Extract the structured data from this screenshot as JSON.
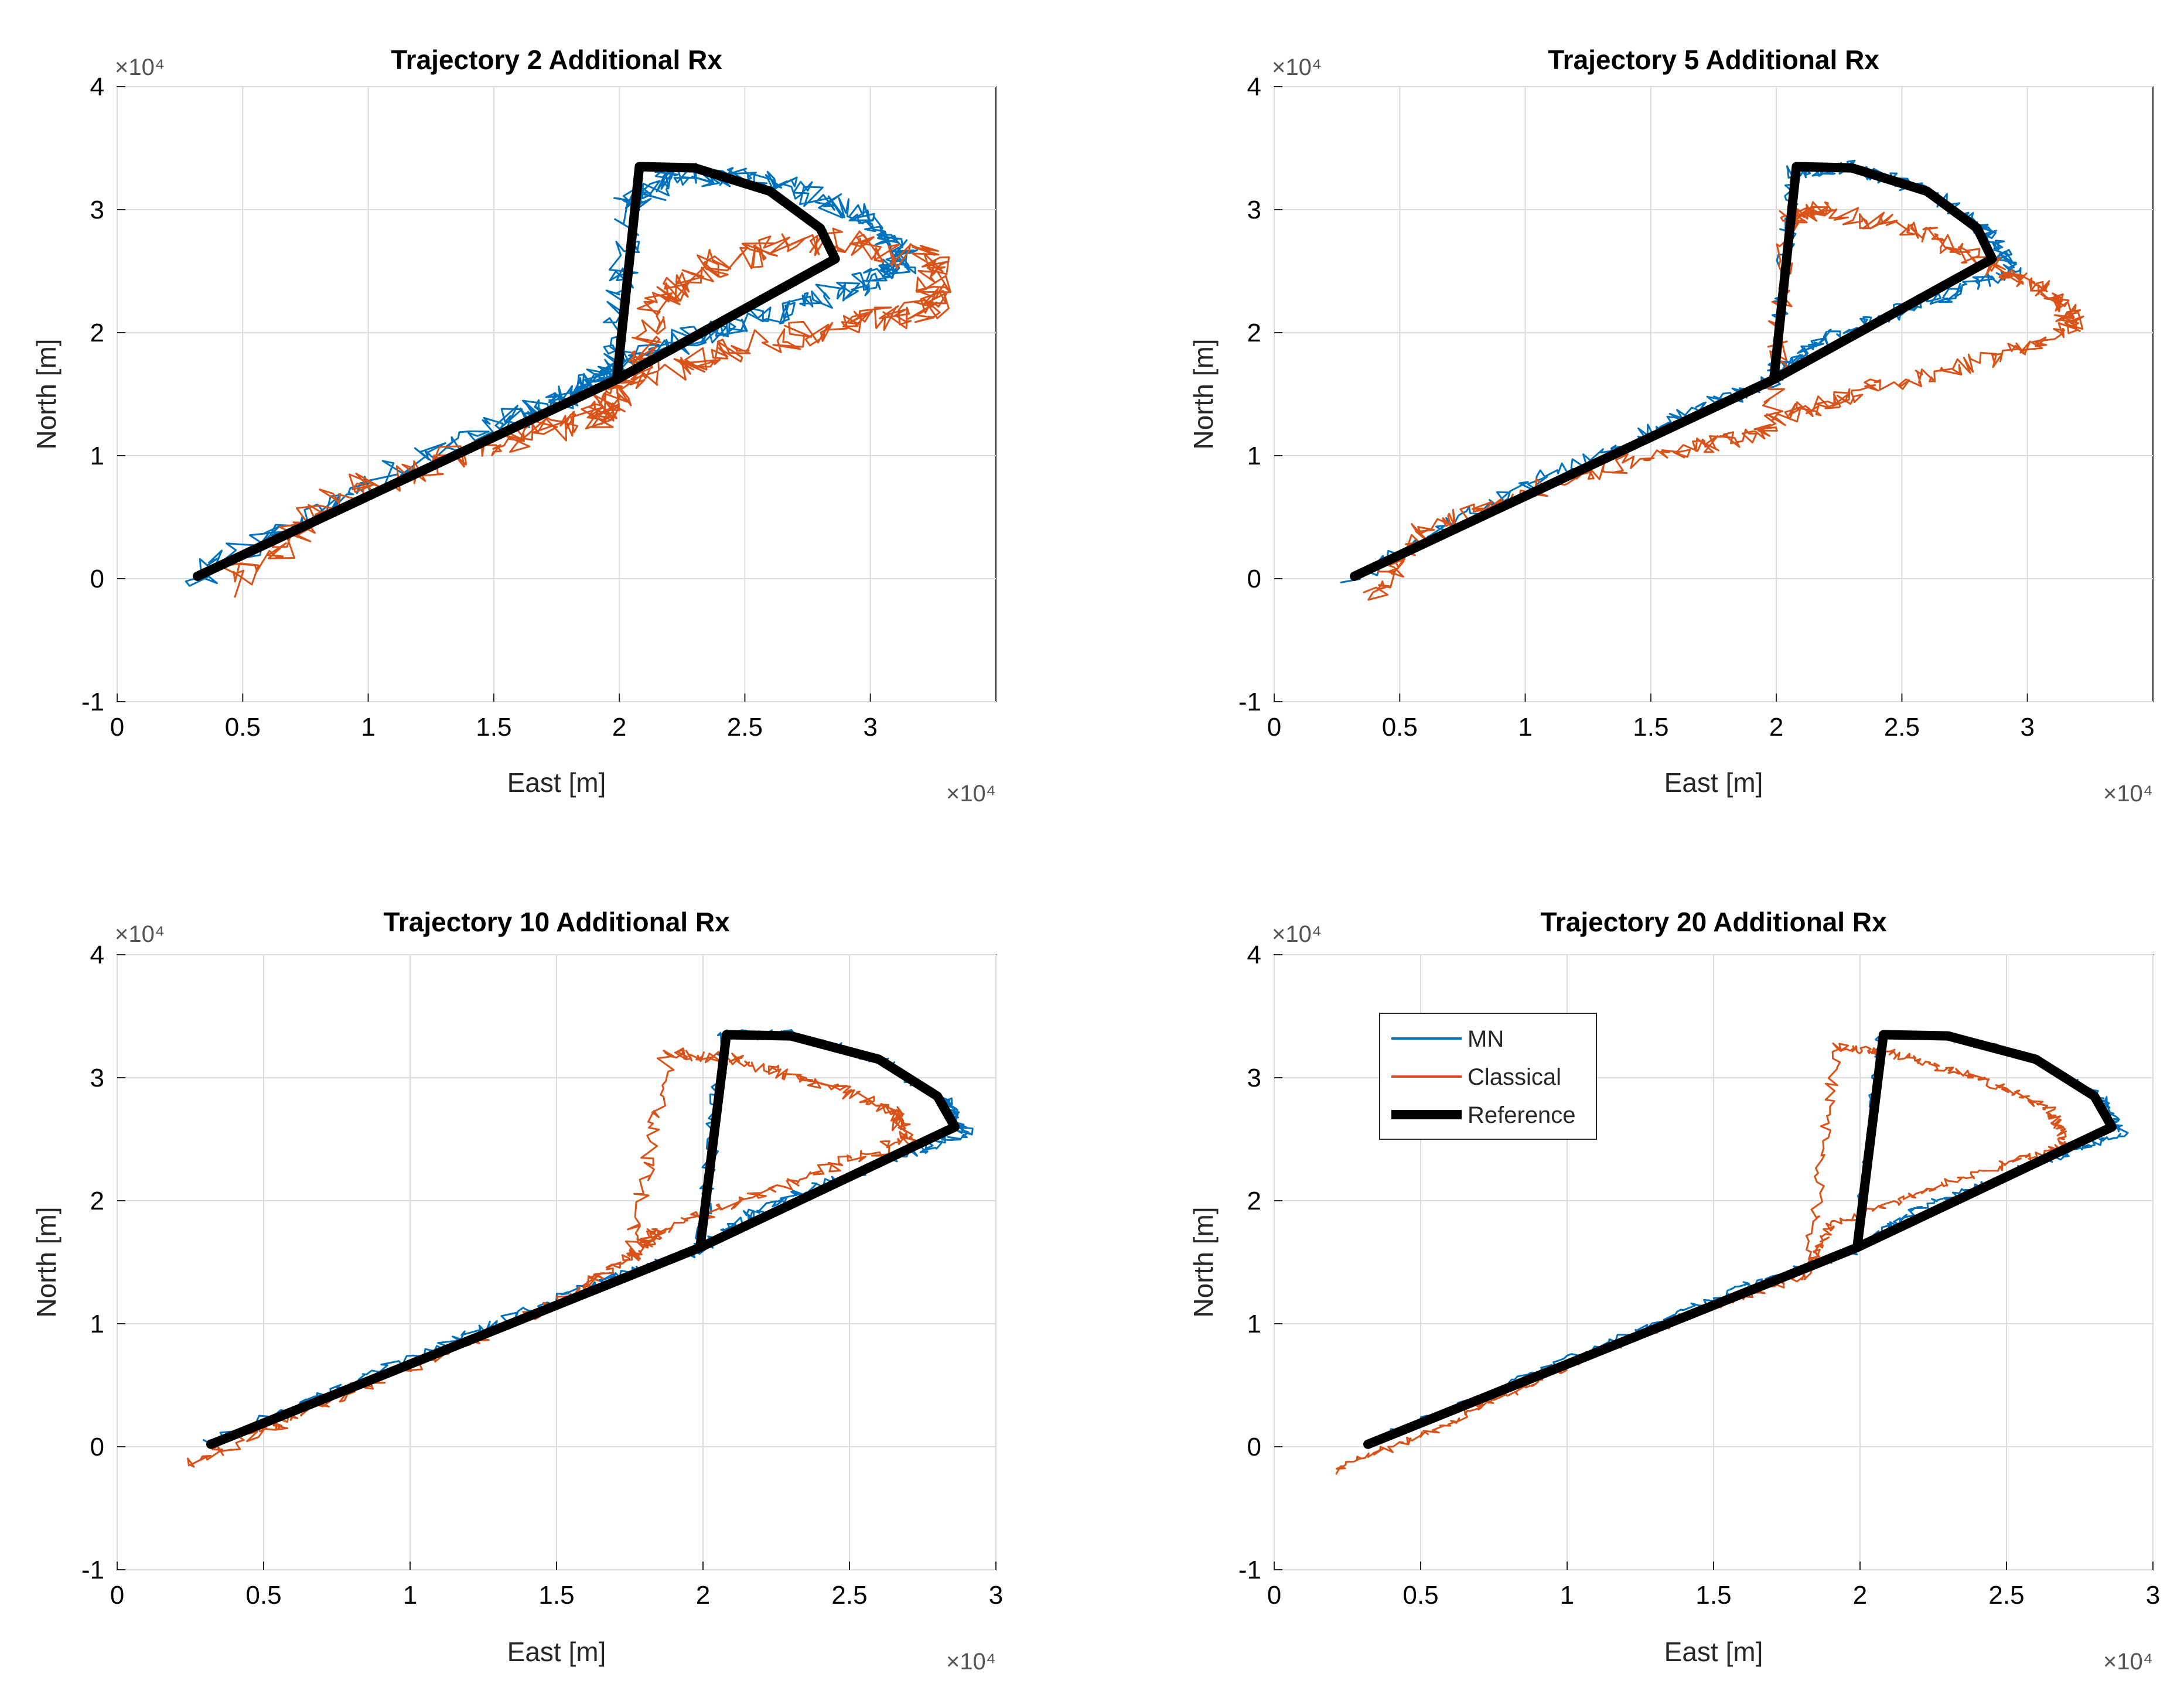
{
  "chart_data": [
    {
      "type": "line",
      "title": "Trajectory 2 Additional Rx",
      "xlabel": "East [m]",
      "ylabel": "North [m]",
      "x_exponent_label": "×10⁴",
      "y_exponent_label": "×10⁴",
      "xlim": [
        0,
        3.5
      ],
      "ylim": [
        -1,
        4
      ],
      "xticks": [
        0,
        0.5,
        1,
        1.5,
        2,
        2.5,
        3
      ],
      "xtick_labels": [
        "0",
        "0.5",
        "1",
        "1.5",
        "2",
        "2.5",
        "3"
      ],
      "yticks": [
        -1,
        0,
        1,
        2,
        3,
        4
      ],
      "ytick_labels": [
        "-1",
        "0",
        "1",
        "2",
        "3",
        "4"
      ],
      "grid": true,
      "series": [
        {
          "name": "MN",
          "color": "#0072BD",
          "noise": 0.12,
          "x": [
            0.3,
            0.9,
            1.5,
            1.8,
            1.98,
            2.03,
            2.2,
            2.6,
            2.95,
            3.15,
            3.0,
            2.6,
            2.2,
            1.95
          ],
          "y": [
            0.0,
            0.65,
            1.25,
            1.5,
            1.72,
            3.0,
            3.3,
            3.25,
            2.95,
            2.6,
            2.4,
            2.15,
            1.9,
            1.65
          ]
        },
        {
          "name": "Classical",
          "color": "#D95319",
          "noise": 0.14,
          "x": [
            0.45,
            0.9,
            1.5,
            1.9,
            2.0,
            2.15,
            2.4,
            2.85,
            3.25,
            3.25,
            2.9,
            2.4,
            2.0
          ],
          "y": [
            -0.05,
            0.7,
            1.1,
            1.3,
            1.5,
            2.2,
            2.6,
            2.75,
            2.6,
            2.2,
            2.05,
            1.85,
            1.6
          ]
        },
        {
          "name": "Reference",
          "color": "#000000",
          "noise": 0.0,
          "x": [
            0.32,
            1.99,
            2.08,
            2.3,
            2.6,
            2.8,
            2.86,
            1.99
          ],
          "y": [
            0.02,
            1.62,
            3.35,
            3.34,
            3.15,
            2.85,
            2.6,
            1.62
          ]
        }
      ]
    },
    {
      "type": "line",
      "title": "Trajectory  5 Additional Rx",
      "xlabel": "East [m]",
      "ylabel": "North [m]",
      "x_exponent_label": "×10⁴",
      "y_exponent_label": "×10⁴",
      "xlim": [
        0,
        3.5
      ],
      "ylim": [
        -1,
        4
      ],
      "xticks": [
        0,
        0.5,
        1,
        1.5,
        2,
        2.5,
        3
      ],
      "xtick_labels": [
        "0",
        "0.5",
        "1",
        "1.5",
        "2",
        "2.5",
        "3"
      ],
      "yticks": [
        -1,
        0,
        1,
        2,
        3,
        4
      ],
      "ytick_labels": [
        "-1",
        "0",
        "1",
        "2",
        "3",
        "4"
      ],
      "grid": true,
      "series": [
        {
          "name": "MN",
          "color": "#0072BD",
          "noise": 0.07,
          "x": [
            0.3,
            1.0,
            1.6,
            1.99,
            2.07,
            2.3,
            2.6,
            2.85,
            2.95,
            2.6,
            2.2,
            1.99
          ],
          "y": [
            0.0,
            0.75,
            1.3,
            1.62,
            3.3,
            3.35,
            3.15,
            2.8,
            2.5,
            2.25,
            1.95,
            1.65
          ]
        },
        {
          "name": "Classical",
          "color": "#D95319",
          "noise": 0.09,
          "x": [
            0.4,
            0.6,
            1.0,
            1.6,
            1.98,
            2.05,
            2.2,
            2.6,
            2.9,
            3.1,
            3.2,
            2.8,
            2.3,
            2.0
          ],
          "y": [
            -0.15,
            0.4,
            0.7,
            1.05,
            1.2,
            2.95,
            3.0,
            2.8,
            2.5,
            2.3,
            2.05,
            1.75,
            1.5,
            1.3
          ]
        },
        {
          "name": "Reference",
          "color": "#000000",
          "noise": 0.0,
          "x": [
            0.32,
            1.99,
            2.08,
            2.3,
            2.6,
            2.8,
            2.86,
            1.99
          ],
          "y": [
            0.02,
            1.62,
            3.35,
            3.34,
            3.15,
            2.85,
            2.6,
            1.62
          ]
        }
      ]
    },
    {
      "type": "line",
      "title": "Trajectory 10 Additional Rx",
      "xlabel": "East [m]",
      "ylabel": "North [m]",
      "x_exponent_label": "×10⁴",
      "y_exponent_label": "×10⁴",
      "xlim": [
        0,
        3
      ],
      "ylim": [
        -1,
        4
      ],
      "xticks": [
        0,
        0.5,
        1,
        1.5,
        2,
        2.5,
        3
      ],
      "xtick_labels": [
        "0",
        "0.5",
        "1",
        "1.5",
        "2",
        "2.5",
        "3"
      ],
      "yticks": [
        -1,
        0,
        1,
        2,
        3,
        4
      ],
      "ytick_labels": [
        "-1",
        "0",
        "1",
        "2",
        "3",
        "4"
      ],
      "grid": true,
      "series": [
        {
          "name": "MN",
          "color": "#0072BD",
          "noise": 0.05,
          "x": [
            0.3,
            1.0,
            1.6,
            1.99,
            2.07,
            2.3,
            2.6,
            2.82,
            2.9,
            2.6,
            2.2,
            1.99
          ],
          "y": [
            0.02,
            0.72,
            1.3,
            1.6,
            3.35,
            3.35,
            3.15,
            2.85,
            2.55,
            2.3,
            1.95,
            1.62
          ]
        },
        {
          "name": "Classical",
          "color": "#D95319",
          "noise": 0.06,
          "x": [
            0.25,
            0.6,
            1.0,
            1.5,
            1.75,
            1.88,
            2.1,
            2.4,
            2.65,
            2.7,
            2.3,
            1.85,
            1.75
          ],
          "y": [
            -0.15,
            0.25,
            0.65,
            1.15,
            1.55,
            3.2,
            3.15,
            2.95,
            2.75,
            2.5,
            2.15,
            1.75,
            1.55
          ]
        },
        {
          "name": "Reference",
          "color": "#000000",
          "noise": 0.0,
          "x": [
            0.32,
            1.99,
            2.08,
            2.3,
            2.6,
            2.8,
            2.86,
            1.99
          ],
          "y": [
            0.02,
            1.62,
            3.35,
            3.34,
            3.15,
            2.85,
            2.6,
            1.62
          ]
        }
      ]
    },
    {
      "type": "line",
      "title": "Trajectory 20 Additional Rx",
      "xlabel": "East [m]",
      "ylabel": "North [m]",
      "x_exponent_label": "×10⁴",
      "y_exponent_label": "×10⁴",
      "xlim": [
        0,
        3
      ],
      "ylim": [
        -1,
        4
      ],
      "xticks": [
        0,
        0.5,
        1,
        1.5,
        2,
        2.5,
        3
      ],
      "xtick_labels": [
        "0",
        "0.5",
        "1",
        "1.5",
        "2",
        "2.5",
        "3"
      ],
      "yticks": [
        -1,
        0,
        1,
        2,
        3,
        4
      ],
      "ytick_labels": [
        "-1",
        "0",
        "1",
        "2",
        "3",
        "4"
      ],
      "grid": true,
      "legend": {
        "placement": "top-left",
        "entries": [
          "MN",
          "Classical",
          "Reference"
        ]
      },
      "series": [
        {
          "name": "MN",
          "color": "#0072BD",
          "noise": 0.035,
          "x": [
            0.3,
            1.0,
            1.6,
            1.99,
            2.07,
            2.3,
            2.6,
            2.82,
            2.9,
            2.6,
            2.2,
            1.99
          ],
          "y": [
            0.02,
            0.7,
            1.3,
            1.6,
            3.35,
            3.35,
            3.15,
            2.85,
            2.55,
            2.3,
            1.95,
            1.62
          ]
        },
        {
          "name": "Classical",
          "color": "#D95319",
          "noise": 0.04,
          "x": [
            0.2,
            0.6,
            1.0,
            1.5,
            1.82,
            1.92,
            2.1,
            2.4,
            2.65,
            2.7,
            2.3,
            1.9,
            1.82
          ],
          "y": [
            -0.2,
            0.2,
            0.65,
            1.15,
            1.4,
            3.25,
            3.2,
            3.0,
            2.75,
            2.45,
            2.15,
            1.8,
            1.45
          ]
        },
        {
          "name": "Reference",
          "color": "#000000",
          "noise": 0.0,
          "x": [
            0.32,
            1.99,
            2.08,
            2.3,
            2.6,
            2.8,
            2.86,
            1.99
          ],
          "y": [
            0.02,
            1.62,
            3.35,
            3.34,
            3.15,
            2.85,
            2.6,
            1.62
          ]
        }
      ]
    }
  ]
}
